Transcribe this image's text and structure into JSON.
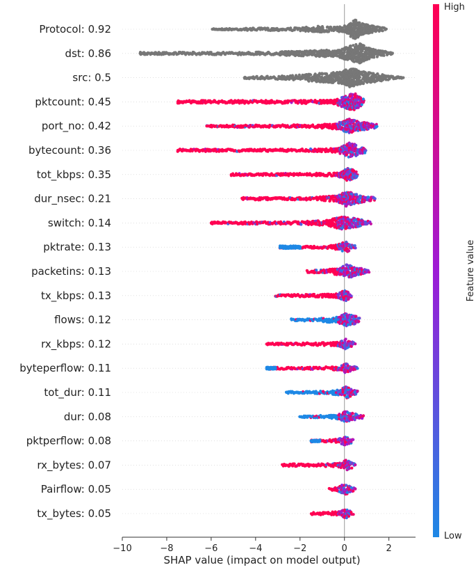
{
  "chart_data": {
    "type": "scatter",
    "subtype": "shap-beeswarm-summary",
    "title": "",
    "xlabel": "SHAP value (impact on model output)",
    "ylabel": "",
    "xlim": [
      -10,
      3.2
    ],
    "xticks": [
      -10,
      -8,
      -6,
      -4,
      -2,
      0,
      2
    ],
    "xtick_labels": [
      "−10",
      "−8",
      "−6",
      "−4",
      "−2",
      "0",
      "2"
    ],
    "colorbar": {
      "label": "Feature value",
      "high_label": "High",
      "low_label": "Low",
      "high_color": "#ff0052",
      "mid_color": "#9d1bd6",
      "low_color": "#1e88e5"
    },
    "uncolored_color": "#777777",
    "features": [
      {
        "label": "Protocol: 0.92",
        "colored": false,
        "min": -5.9,
        "max": 1.9,
        "sparse_left": [
          -5.95,
          -5.8,
          -5.6
        ],
        "sparse_right": [],
        "density": [
          [
            -6.0,
            0.05
          ],
          [
            -4.0,
            0.12
          ],
          [
            -2.0,
            0.15
          ],
          [
            -1.1,
            0.3
          ],
          [
            -0.3,
            0.2
          ],
          [
            0.1,
            0.4
          ],
          [
            0.45,
            0.95
          ],
          [
            0.8,
            0.55
          ],
          [
            1.3,
            0.3
          ],
          [
            1.9,
            0.1
          ]
        ],
        "low_side": "left",
        "mix": 0.5
      },
      {
        "label": "dst: 0.86",
        "colored": false,
        "min": -9.2,
        "max": 2.2,
        "sparse_left": [
          -9.2,
          -9.0,
          -8.7,
          -8.1,
          -7.9
        ],
        "sparse_right": [],
        "density": [
          [
            -7.5,
            0.12
          ],
          [
            -5.0,
            0.12
          ],
          [
            -3.0,
            0.16
          ],
          [
            -1.2,
            0.3
          ],
          [
            -0.3,
            0.35
          ],
          [
            0.4,
            0.8
          ],
          [
            0.7,
            0.95
          ],
          [
            1.2,
            0.45
          ],
          [
            1.8,
            0.2
          ],
          [
            2.2,
            0.1
          ]
        ],
        "low_side": "left",
        "mix": 0.5
      },
      {
        "label": "src: 0.5",
        "colored": false,
        "min": -4.5,
        "max": 2.6,
        "sparse_left": [
          -4.5,
          -4.3
        ],
        "sparse_right": [
          2.3,
          2.5,
          2.6
        ],
        "density": [
          [
            -4.2,
            0.12
          ],
          [
            -2.5,
            0.18
          ],
          [
            -1.0,
            0.45
          ],
          [
            -0.2,
            0.55
          ],
          [
            0.3,
            0.95
          ],
          [
            0.8,
            0.6
          ],
          [
            1.4,
            0.4
          ],
          [
            2.0,
            0.2
          ],
          [
            2.3,
            0.1
          ]
        ],
        "low_side": "left",
        "mix": 0.5
      },
      {
        "label": "pktcount: 0.45",
        "colored": true,
        "min": -7.5,
        "max": 0.9,
        "sparse_left": [
          -7.5,
          -7.2,
          -6.8,
          -6.6,
          -6.3
        ],
        "sparse_right": [],
        "density": [
          [
            -6.0,
            0.14
          ],
          [
            -3.0,
            0.14
          ],
          [
            -0.5,
            0.18
          ],
          [
            0.2,
            0.7
          ],
          [
            0.5,
            0.8
          ],
          [
            0.8,
            0.3
          ]
        ],
        "low_side": "right",
        "mix": 0.15
      },
      {
        "label": "port_no: 0.42",
        "colored": true,
        "min": -6.2,
        "max": 1.5,
        "sparse_left": [
          -6.2,
          -5.9,
          -5.2,
          -4.8,
          -4.6
        ],
        "sparse_right": [],
        "density": [
          [
            -4.2,
            0.12
          ],
          [
            -1.5,
            0.14
          ],
          [
            -0.3,
            0.3
          ],
          [
            0.2,
            0.7
          ],
          [
            0.6,
            0.5
          ],
          [
            1.0,
            0.35
          ],
          [
            1.5,
            0.15
          ]
        ],
        "low_side": "right",
        "mix": 0.4
      },
      {
        "label": "bytecount: 0.36",
        "colored": true,
        "min": -7.5,
        "max": 1.0,
        "sparse_left": [
          -7.5,
          -7.2,
          -6.6,
          -6.2,
          -5.9,
          -5.1,
          -4.2,
          -3.9,
          -3.1,
          -2.6
        ],
        "sparse_right": [],
        "density": [
          [
            -2.2,
            0.12
          ],
          [
            -1.0,
            0.14
          ],
          [
            -0.3,
            0.2
          ],
          [
            0.2,
            0.7
          ],
          [
            0.5,
            0.55
          ],
          [
            1.0,
            0.2
          ]
        ],
        "low_side": "right",
        "mix": 0.2
      },
      {
        "label": "tot_kbps: 0.35",
        "colored": true,
        "min": -5.1,
        "max": 0.6,
        "sparse_left": [
          -5.1,
          -4.8,
          -4.6
        ],
        "sparse_right": [],
        "density": [
          [
            -4.3,
            0.1
          ],
          [
            -1.5,
            0.12
          ],
          [
            -0.3,
            0.16
          ],
          [
            0.2,
            0.65
          ],
          [
            0.45,
            0.45
          ],
          [
            0.6,
            0.15
          ]
        ],
        "low_side": "right",
        "mix": 0.15
      },
      {
        "label": "dur_nsec: 0.21",
        "colored": true,
        "min": -4.6,
        "max": 1.4,
        "sparse_left": [
          -4.6,
          -4.3,
          -4.1
        ],
        "sparse_right": [],
        "density": [
          [
            -3.9,
            0.12
          ],
          [
            -1.5,
            0.14
          ],
          [
            -0.3,
            0.3
          ],
          [
            0.1,
            0.75
          ],
          [
            0.5,
            0.45
          ],
          [
            1.0,
            0.25
          ],
          [
            1.4,
            0.12
          ]
        ],
        "low_side": "right",
        "mix": 0.45
      },
      {
        "label": "switch: 0.14",
        "colored": true,
        "min": -6.0,
        "max": 1.2,
        "sparse_left": [
          -6.0,
          -5.8,
          -5.6,
          -5.4,
          -5.1,
          -4.9
        ],
        "sparse_right": [],
        "density": [
          [
            -3.3,
            0.12
          ],
          [
            -2.0,
            0.14
          ],
          [
            -0.8,
            0.25
          ],
          [
            -0.1,
            0.6
          ],
          [
            0.3,
            0.5
          ],
          [
            0.8,
            0.3
          ],
          [
            1.2,
            0.12
          ]
        ],
        "low_side": "right",
        "mix": 0.5
      },
      {
        "label": "pktrate: 0.13",
        "colored": true,
        "min": -2.9,
        "max": 0.5,
        "sparse_left": [],
        "sparse_right": [],
        "density": [
          [
            -1.1,
            0.1
          ],
          [
            -0.4,
            0.2
          ],
          [
            -0.1,
            0.4
          ],
          [
            0.1,
            0.55
          ],
          [
            0.3,
            0.3
          ],
          [
            0.5,
            0.12
          ]
        ],
        "low_side": "right",
        "mix": 0.25,
        "clusters": [
          {
            "min": -2.9,
            "max": -2.0,
            "tone": 0.0,
            "h": 0.12
          }
        ]
      },
      {
        "label": "packetins: 0.13",
        "colored": true,
        "min": -1.7,
        "max": 1.1,
        "sparse_left": [],
        "sparse_right": [],
        "density": [
          [
            -1.7,
            0.1
          ],
          [
            -0.8,
            0.2
          ],
          [
            -0.2,
            0.35
          ],
          [
            0.1,
            0.7
          ],
          [
            0.5,
            0.4
          ],
          [
            1.1,
            0.12
          ]
        ],
        "low_side": "right",
        "mix": 0.5
      },
      {
        "label": "tx_kbps: 0.13",
        "colored": true,
        "min": -3.1,
        "max": 0.3,
        "sparse_left": [],
        "sparse_right": [],
        "density": [
          [
            -3.1,
            0.1
          ],
          [
            -1.5,
            0.12
          ],
          [
            -0.3,
            0.2
          ],
          [
            0.05,
            0.55
          ],
          [
            0.3,
            0.2
          ]
        ],
        "low_side": "right",
        "mix": 0.1
      },
      {
        "label": "flows: 0.12",
        "colored": true,
        "min": -2.4,
        "max": 0.7,
        "sparse_left": [],
        "sparse_right": [],
        "density": [
          [
            -2.4,
            0.1
          ],
          [
            -1.2,
            0.14
          ],
          [
            -0.3,
            0.3
          ],
          [
            0.1,
            0.65
          ],
          [
            0.4,
            0.45
          ],
          [
            0.7,
            0.15
          ]
        ],
        "low_side": "left",
        "mix": 0.45
      },
      {
        "label": "rx_kbps: 0.12",
        "colored": true,
        "min": -3.5,
        "max": 0.5,
        "sparse_left": [
          -3.5
        ],
        "sparse_right": [],
        "density": [
          [
            -3.3,
            0.1
          ],
          [
            -1.5,
            0.12
          ],
          [
            -0.3,
            0.18
          ],
          [
            0.05,
            0.5
          ],
          [
            0.3,
            0.25
          ],
          [
            0.5,
            0.1
          ]
        ],
        "low_side": "right",
        "mix": 0.15
      },
      {
        "label": "byteperflow: 0.11",
        "colored": true,
        "min": -3.5,
        "max": 0.6,
        "sparse_left": [],
        "sparse_right": [],
        "density": [
          [
            -1.8,
            0.1
          ],
          [
            -0.8,
            0.14
          ],
          [
            -0.2,
            0.2
          ],
          [
            0.05,
            0.45
          ],
          [
            0.3,
            0.25
          ],
          [
            0.6,
            0.12
          ]
        ],
        "low_side": "right",
        "mix": 0.25,
        "clusters": [
          {
            "min": -3.5,
            "max": -3.1,
            "tone": 0.0,
            "h": 0.1
          }
        ]
      },
      {
        "label": "tot_dur: 0.11",
        "colored": true,
        "min": -2.6,
        "max": 0.6,
        "sparse_left": [
          -2.6,
          -2.0
        ],
        "sparse_right": [],
        "density": [
          [
            -1.6,
            0.1
          ],
          [
            -0.8,
            0.14
          ],
          [
            -0.2,
            0.25
          ],
          [
            0.05,
            0.6
          ],
          [
            0.3,
            0.35
          ],
          [
            0.6,
            0.12
          ]
        ],
        "low_side": "left",
        "mix": 0.4
      },
      {
        "label": "dur: 0.08",
        "colored": true,
        "min": -2.0,
        "max": 0.9,
        "sparse_left": [
          -2.0
        ],
        "sparse_right": [],
        "density": [
          [
            -1.7,
            0.1
          ],
          [
            -0.8,
            0.14
          ],
          [
            -0.2,
            0.25
          ],
          [
            0.05,
            0.55
          ],
          [
            0.4,
            0.35
          ],
          [
            0.9,
            0.12
          ]
        ],
        "low_side": "left",
        "mix": 0.5
      },
      {
        "label": "pktperflow: 0.08",
        "colored": true,
        "min": -1.5,
        "max": 0.4,
        "sparse_left": [],
        "sparse_right": [],
        "density": [
          [
            -0.8,
            0.1
          ],
          [
            -0.3,
            0.18
          ],
          [
            0.0,
            0.4
          ],
          [
            0.2,
            0.3
          ],
          [
            0.4,
            0.12
          ]
        ],
        "low_side": "right",
        "mix": 0.2,
        "clusters": [
          {
            "min": -1.5,
            "max": -1.1,
            "tone": 0.0,
            "h": 0.1
          }
        ]
      },
      {
        "label": "rx_bytes: 0.07",
        "colored": true,
        "min": -2.8,
        "max": 0.5,
        "sparse_left": [
          -1.3
        ],
        "sparse_right": [],
        "density": [
          [
            -2.8,
            0.12
          ],
          [
            -1.8,
            0.12
          ],
          [
            -0.8,
            0.14
          ],
          [
            -0.2,
            0.2
          ],
          [
            0.05,
            0.5
          ],
          [
            0.3,
            0.3
          ],
          [
            0.5,
            0.12
          ]
        ],
        "low_side": "right",
        "mix": 0.15
      },
      {
        "label": "Pairflow: 0.05",
        "colored": true,
        "min": -0.7,
        "max": 0.5,
        "sparse_left": [],
        "sparse_right": [],
        "density": [
          [
            -0.7,
            0.1
          ],
          [
            -0.3,
            0.2
          ],
          [
            -0.1,
            0.45
          ],
          [
            0.05,
            0.5
          ],
          [
            0.25,
            0.25
          ],
          [
            0.5,
            0.1
          ]
        ],
        "low_side": "right",
        "mix": 0.2
      },
      {
        "label": "tx_bytes: 0.05",
        "colored": true,
        "min": -1.5,
        "max": 0.4,
        "sparse_left": [],
        "sparse_right": [],
        "density": [
          [
            -1.5,
            0.1
          ],
          [
            -0.7,
            0.14
          ],
          [
            -0.2,
            0.2
          ],
          [
            0.05,
            0.5
          ],
          [
            0.25,
            0.25
          ],
          [
            0.4,
            0.1
          ]
        ],
        "low_side": "right",
        "mix": 0.15
      }
    ]
  }
}
